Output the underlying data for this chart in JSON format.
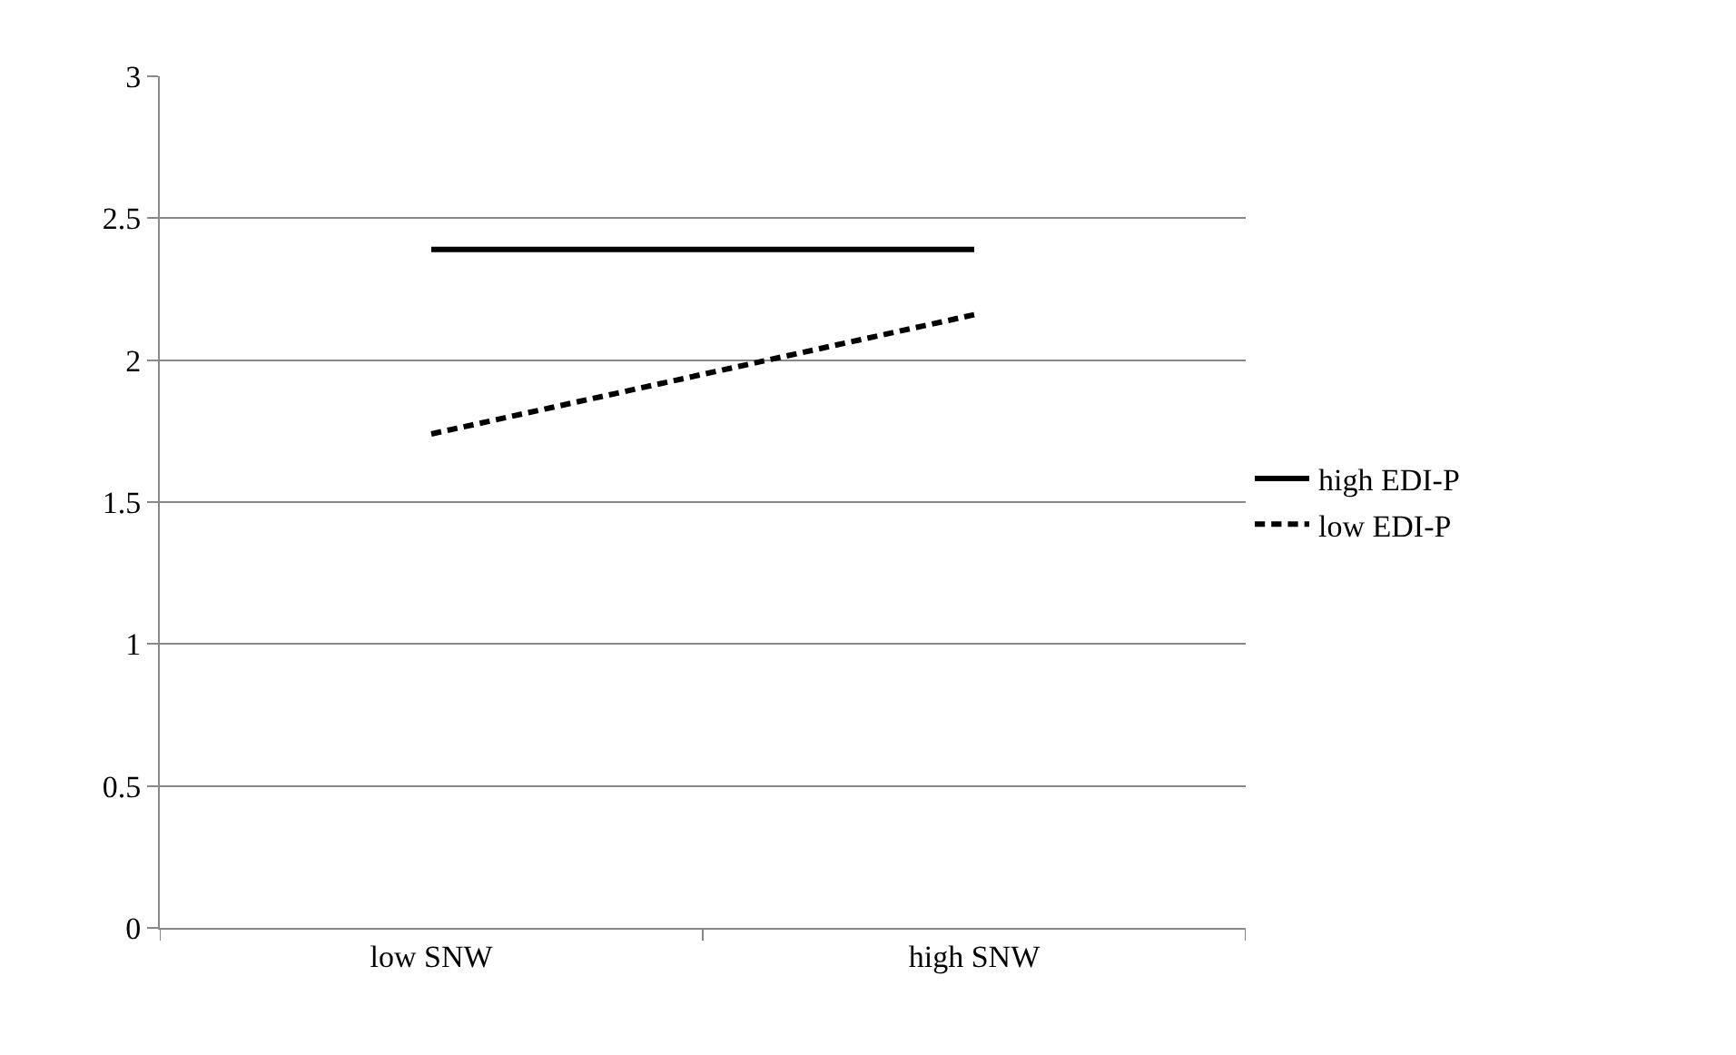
{
  "chart_data": {
    "type": "line",
    "categories": [
      "low SNW",
      "high SNW"
    ],
    "series": [
      {
        "name": "high EDI-P",
        "color": "#000000",
        "values": [
          2.39,
          2.39
        ],
        "line_style": "solid"
      },
      {
        "name": "low EDI-P",
        "color": "#000000",
        "values": [
          1.74,
          2.16
        ],
        "line_style": "dashed"
      }
    ],
    "ylim": [
      0,
      3
    ],
    "yticks": [
      0,
      0.5,
      1,
      1.5,
      2,
      2.5,
      3
    ],
    "grid": "y",
    "legend": "right",
    "marker": "none"
  }
}
